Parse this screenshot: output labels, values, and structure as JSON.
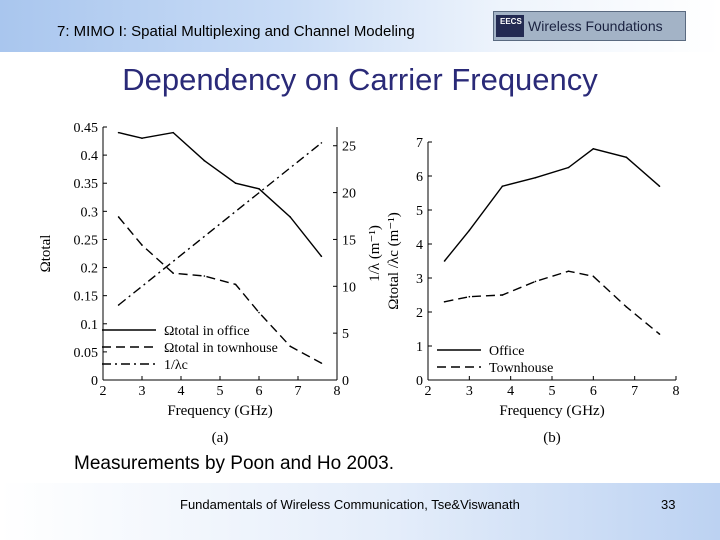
{
  "header": {
    "course_title": "7: MIMO I: Spatial Multiplexing and Channel Modeling",
    "logo_badge": "EECS",
    "logo_text": "Wireless Foundations"
  },
  "slide": {
    "title": "Dependency on Carrier Frequency",
    "caption": "Measurements by Poon and Ho 2003."
  },
  "footer": {
    "text": "Fundamentals of Wireless Communication, Tse&Viswanath",
    "page_number": "33"
  },
  "chart_data": [
    {
      "type": "line",
      "panel_label": "(a)",
      "xlabel": "Frequency (GHz)",
      "ylabel": "Ωtotal",
      "y2label": "1/λ (m⁻¹)",
      "xlim": [
        2,
        8
      ],
      "ylim": [
        0,
        0.45
      ],
      "y2lim": [
        0,
        27
      ],
      "xticks": [
        "2",
        "3",
        "4",
        "5",
        "6",
        "7",
        "8"
      ],
      "yticks": [
        "0",
        "0.05",
        "0.1",
        "0.15",
        "0.2",
        "0.25",
        "0.3",
        "0.35",
        "0.4",
        "0.45"
      ],
      "y2ticks": [
        "0",
        "5",
        "10",
        "15",
        "20",
        "25"
      ],
      "grid": false,
      "legend_position": "bottom-left",
      "series": [
        {
          "name": "Ωtotal in office",
          "axis": "left",
          "dash": "solid",
          "x": [
            2.4,
            3.0,
            3.8,
            4.6,
            5.4,
            6.0,
            6.8,
            7.6
          ],
          "y": [
            0.44,
            0.43,
            0.44,
            0.39,
            0.35,
            0.34,
            0.29,
            0.22
          ]
        },
        {
          "name": "Ωtotal in townhouse",
          "axis": "left",
          "dash": "dashed",
          "x": [
            2.4,
            3.0,
            3.8,
            4.6,
            5.4,
            6.0,
            6.8,
            7.6
          ],
          "y": [
            0.29,
            0.24,
            0.19,
            0.185,
            0.17,
            0.12,
            0.06,
            0.03
          ]
        },
        {
          "name": "1/λc",
          "axis": "right",
          "dash": "dashdot",
          "x": [
            2.4,
            7.6
          ],
          "y": [
            8.0,
            25.3
          ]
        }
      ]
    },
    {
      "type": "line",
      "panel_label": "(b)",
      "xlabel": "Frequency (GHz)",
      "ylabel": "Ωtotal /λc (m⁻¹)",
      "xlim": [
        2,
        8
      ],
      "ylim": [
        0,
        7
      ],
      "xticks": [
        "2",
        "3",
        "4",
        "5",
        "6",
        "7",
        "8"
      ],
      "yticks": [
        "0",
        "1",
        "2",
        "3",
        "4",
        "5",
        "6",
        "7"
      ],
      "grid": false,
      "legend_position": "bottom-left",
      "series": [
        {
          "name": "Office",
          "dash": "solid",
          "x": [
            2.4,
            3.0,
            3.8,
            4.6,
            5.4,
            6.0,
            6.8,
            7.6
          ],
          "y": [
            3.5,
            4.4,
            5.7,
            5.95,
            6.25,
            6.8,
            6.55,
            5.7
          ]
        },
        {
          "name": "Townhouse",
          "dash": "dashed",
          "x": [
            2.4,
            3.0,
            3.8,
            4.6,
            5.4,
            6.0,
            6.8,
            7.6
          ],
          "y": [
            2.3,
            2.45,
            2.5,
            2.9,
            3.2,
            3.05,
            2.15,
            1.35
          ]
        }
      ]
    }
  ]
}
